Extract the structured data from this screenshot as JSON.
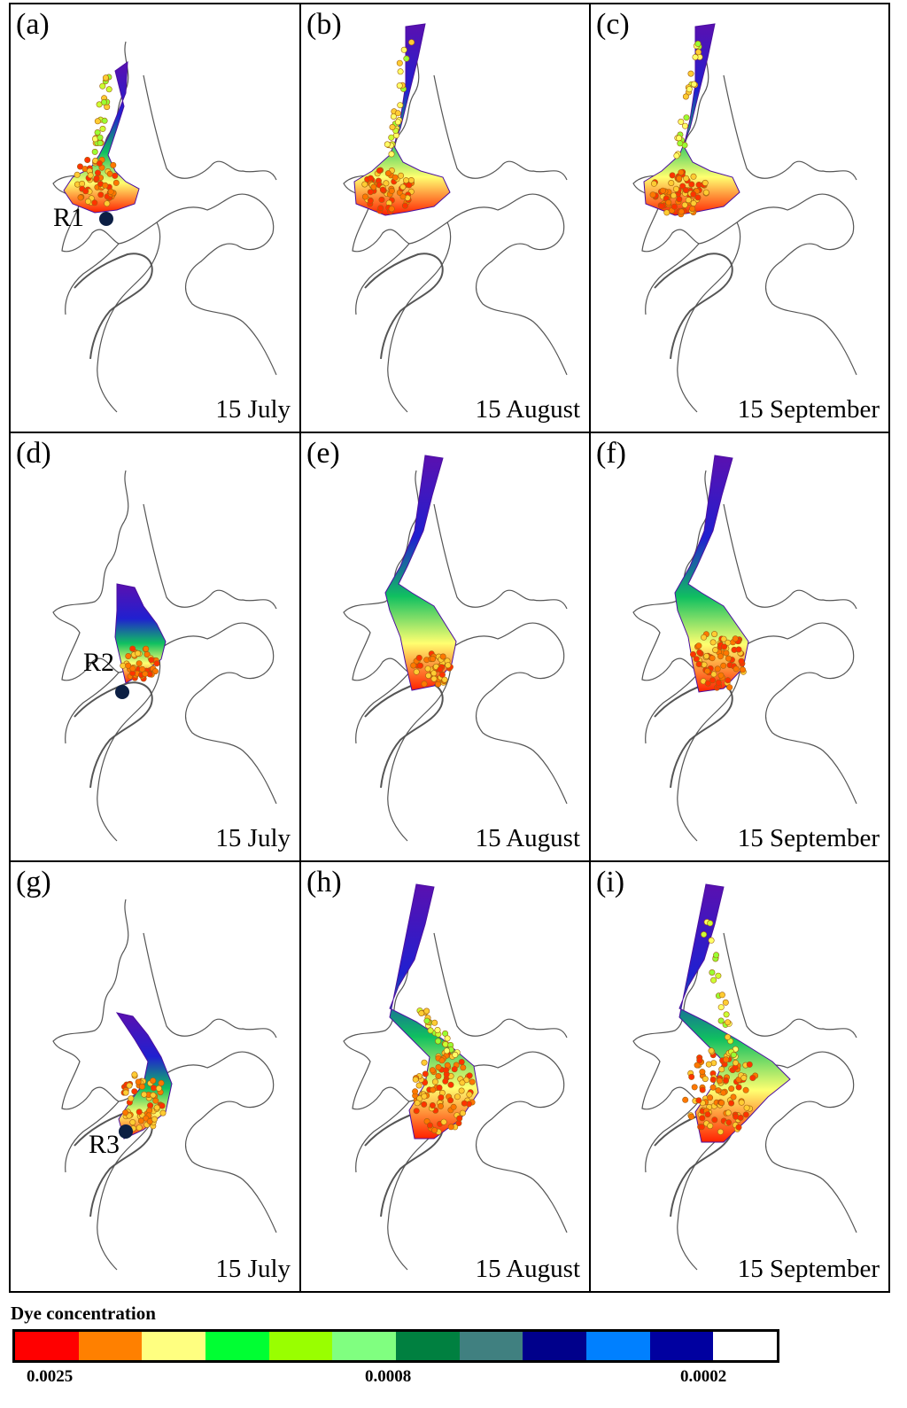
{
  "panels": [
    {
      "label": "(a)",
      "date": "15 July",
      "release": "R1",
      "row": 0,
      "col": 0
    },
    {
      "label": "(b)",
      "date": "15 August",
      "release": "",
      "row": 0,
      "col": 1
    },
    {
      "label": "(c)",
      "date": "15 September",
      "release": "",
      "row": 0,
      "col": 2
    },
    {
      "label": "(d)",
      "date": "15 July",
      "release": "R2",
      "row": 1,
      "col": 0
    },
    {
      "label": "(e)",
      "date": "15 August",
      "release": "",
      "row": 1,
      "col": 1
    },
    {
      "label": "(f)",
      "date": "15 September",
      "release": "",
      "row": 1,
      "col": 2
    },
    {
      "label": "(g)",
      "date": "15 July",
      "release": "R3",
      "row": 2,
      "col": 0
    },
    {
      "label": "(h)",
      "date": "15 August",
      "release": "",
      "row": 2,
      "col": 1
    },
    {
      "label": "(i)",
      "date": "15 September",
      "release": "",
      "row": 2,
      "col": 2
    }
  ],
  "legend": {
    "title": "Dye concentration",
    "colors": [
      "#ff0000",
      "#ff8000",
      "#ffff80",
      "#00ff33",
      "#99ff00",
      "#80ff80",
      "#008040",
      "#408080",
      "#00008b",
      "#0080ff",
      "#0000a0",
      "#ffffff"
    ],
    "ticks": [
      "0.0025",
      "0.0008",
      "0.0002"
    ]
  }
}
